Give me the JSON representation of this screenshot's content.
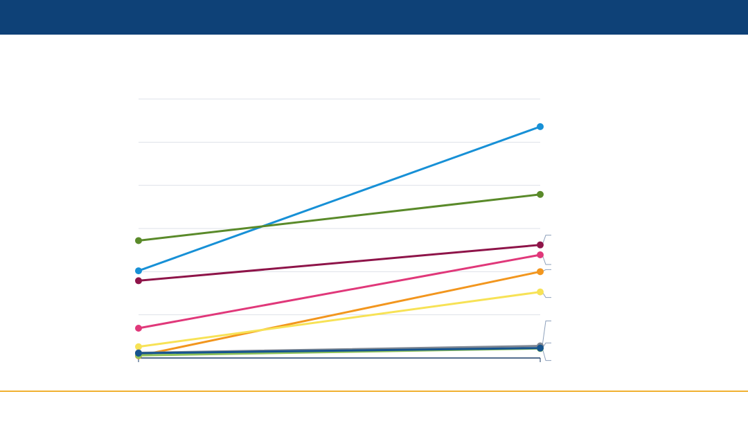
{
  "colors": {
    "header": "#0e4177",
    "footer_rule": "#f0b030",
    "grid": "#dde1e8",
    "axis": "#1b3d68",
    "leader": "#8da0bb"
  },
  "chart_data": {
    "type": "line",
    "categories": [
      "",
      ""
    ],
    "ylim": [
      0,
      6
    ],
    "yticks": [
      0,
      1,
      2,
      3,
      4,
      5,
      6
    ],
    "grid": true,
    "legend": "none",
    "series": [
      {
        "color": "#1790d6",
        "values": [
          2.02,
          5.36
        ]
      },
      {
        "color": "#5a8a2a",
        "values": [
          2.72,
          3.79
        ]
      },
      {
        "color": "#8e1449",
        "values": [
          1.79,
          2.62
        ]
      },
      {
        "color": "#e0387a",
        "values": [
          0.69,
          2.39
        ]
      },
      {
        "color": "#f2961e",
        "values": [
          0.05,
          2.0
        ]
      },
      {
        "color": "#f7e256",
        "values": [
          0.26,
          1.53
        ]
      },
      {
        "color": "#7f8793",
        "values": [
          0.12,
          0.28
        ]
      },
      {
        "color": "#8dc15a",
        "values": [
          0.06,
          0.22
        ]
      },
      {
        "color": "#16548e",
        "values": [
          0.11,
          0.23
        ]
      }
    ]
  }
}
